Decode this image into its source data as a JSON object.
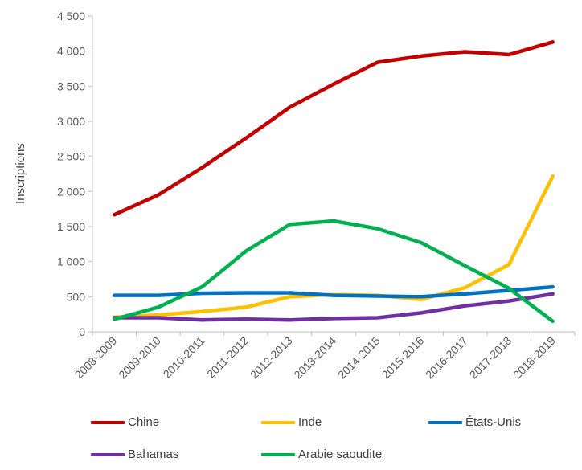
{
  "chart_data": {
    "type": "line",
    "title": "",
    "xlabel": "",
    "ylabel": "Inscriptions",
    "ylim": [
      0,
      4500
    ],
    "yticks": [
      0,
      500,
      1000,
      1500,
      2000,
      2500,
      3000,
      3500,
      4000,
      4500
    ],
    "ytick_labels": [
      "0",
      "500",
      "1 000",
      "1 500",
      "2 000",
      "2 500",
      "3 000",
      "3 500",
      "4 000",
      "4 500"
    ],
    "categories": [
      "2008-2009",
      "2009-2010",
      "2010-2011",
      "2011-2012",
      "2012-2013",
      "2013-2014",
      "2014-2015",
      "2015-2016",
      "2016-2017",
      "2017-2018",
      "2018-2019"
    ],
    "grid": false,
    "legend_position": "bottom",
    "series": [
      {
        "name": "Chine",
        "color": "#C00000",
        "values": [
          1670,
          1950,
          2340,
          2760,
          3200,
          3530,
          3840,
          3930,
          3990,
          3950,
          4130
        ]
      },
      {
        "name": "Inde",
        "color": "#FFC000",
        "values": [
          210,
          240,
          290,
          350,
          500,
          530,
          520,
          460,
          630,
          960,
          2220
        ]
      },
      {
        "name": "États-Unis",
        "color": "#0070C0",
        "values": [
          520,
          520,
          550,
          555,
          555,
          520,
          510,
          500,
          540,
          590,
          640
        ]
      },
      {
        "name": "Bahamas",
        "color": "#7030A0",
        "values": [
          200,
          200,
          170,
          180,
          170,
          190,
          200,
          270,
          370,
          440,
          540
        ]
      },
      {
        "name": "Arabie saoudite",
        "color": "#00B050",
        "values": [
          180,
          350,
          640,
          1150,
          1530,
          1580,
          1470,
          1270,
          940,
          620,
          150
        ]
      }
    ]
  }
}
